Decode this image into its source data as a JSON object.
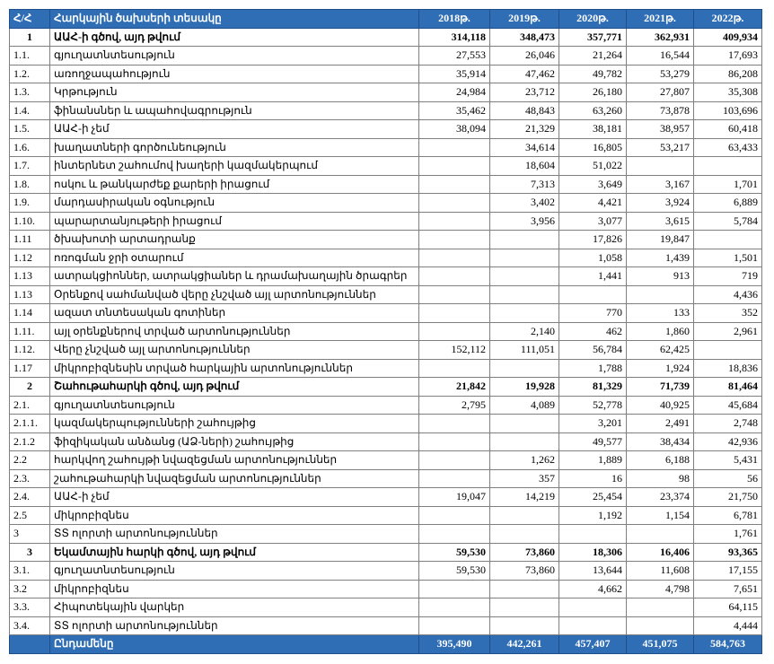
{
  "table": {
    "header": [
      "Հ/Հ",
      "Հարկային ծախսերի տեսակը",
      "2018թ.",
      "2019թ.",
      "2020թ.",
      "2021թ.",
      "2022թ."
    ],
    "rows": [
      {
        "bold": true,
        "cells": [
          "1",
          "ԱԱՀ-ի գծով, այդ թվում",
          "314,118",
          "348,473",
          "357,771",
          "362,931",
          "409,934"
        ]
      },
      {
        "cells": [
          "1.1.",
          "գյուղատնտեսություն",
          "27,553",
          "26,046",
          "21,264",
          "16,544",
          "17,693"
        ]
      },
      {
        "cells": [
          "1.2.",
          "առողջապահություն",
          "35,914",
          "47,462",
          "49,782",
          "53,279",
          "86,208"
        ]
      },
      {
        "cells": [
          "1.3.",
          "Կրթություն",
          "24,984",
          "23,712",
          "26,180",
          "27,807",
          "35,308"
        ]
      },
      {
        "cells": [
          "1.4.",
          "ֆինանսներ և ապահովագրություն",
          "35,462",
          "48,843",
          "63,260",
          "73,878",
          "103,696"
        ]
      },
      {
        "cells": [
          "1.5.",
          "ԱԱՀ-ի չեմ",
          "38,094",
          "21,329",
          "38,181",
          "38,957",
          "60,418"
        ]
      },
      {
        "cells": [
          "1.6.",
          "խաղատների գործունեություն",
          null,
          "34,614",
          "16,805",
          "53,217",
          "63,433"
        ]
      },
      {
        "cells": [
          "1.7.",
          "ինտերնետ շահումով խաղերի կազմակերպում",
          null,
          "18,604",
          "51,022",
          null,
          null
        ]
      },
      {
        "cells": [
          "1.8.",
          "ոսկու և թանկարժեք քարերի իրացում",
          null,
          "7,313",
          "3,649",
          "3,167",
          "1,701"
        ]
      },
      {
        "cells": [
          "1.9.",
          "մարդասիրական օգնություն",
          null,
          "3,402",
          "4,421",
          "3,924",
          "6,889"
        ]
      },
      {
        "cells": [
          "1.10.",
          "պարարտանյութերի իրացում",
          null,
          "3,956",
          "3,077",
          "3,615",
          "5,784"
        ]
      },
      {
        "cells": [
          "1.11",
          "ծխախոտի արտադրանք",
          null,
          null,
          "17,826",
          "19,847",
          null
        ]
      },
      {
        "cells": [
          "1.12",
          "ոռոգման ջրի օտարում",
          null,
          null,
          "1,058",
          "1,439",
          "1,501"
        ]
      },
      {
        "cells": [
          "1.13",
          "ատրակցիոններ, ատրակցիաներ և դրամախաղային ծրագրեր",
          null,
          null,
          "1,441",
          "913",
          "719"
        ]
      },
      {
        "cells": [
          "1.13",
          "Օրենքով սահմանված վերը չնշված այլ արտոնություններ",
          null,
          null,
          null,
          null,
          "4,436"
        ]
      },
      {
        "cells": [
          "1.14",
          "ազատ տնտեսական գոտիներ",
          null,
          null,
          "770",
          "133",
          "352"
        ]
      },
      {
        "cells": [
          "1.11.",
          "այլ օրենքներով տրված արտոնություններ",
          null,
          "2,140",
          "462",
          "1,860",
          "2,961"
        ]
      },
      {
        "cells": [
          "1.12.",
          "Վերը չնշված այլ արտոնություններ",
          "152,112",
          "111,051",
          "56,784",
          "62,425",
          null
        ]
      },
      {
        "cells": [
          "1.17",
          "միկրոբիզնեսին տրված հարկային արտոնություններ",
          null,
          null,
          "1,788",
          "1,924",
          "18,836"
        ]
      },
      {
        "bold": true,
        "cells": [
          "2",
          "Շահութահարկի գծով, այդ թվում",
          "21,842",
          "19,928",
          "81,329",
          "71,739",
          "81,464"
        ]
      },
      {
        "cells": [
          "2.1.",
          "գյուղատնտեսություն",
          "2,795",
          "4,089",
          "52,778",
          "40,925",
          "45,684"
        ]
      },
      {
        "cells": [
          "2.1.1.",
          "կազմակերպությունների շահույթից",
          null,
          null,
          "3,201",
          "2,491",
          "2,748"
        ]
      },
      {
        "cells": [
          "2.1.2",
          "ֆիզիկական անձանց (ԱՁ-ների) շահույթից",
          null,
          null,
          "49,577",
          "38,434",
          "42,936"
        ]
      },
      {
        "cells": [
          "2.2",
          "հարկվող շահույթի նվազեցման արտոնություններ",
          null,
          "1,262",
          "1,889",
          "6,188",
          "5,431"
        ]
      },
      {
        "cells": [
          "2.3.",
          "շահութահարկի նվազեցման արտոնություններ",
          null,
          "357",
          "16",
          "98",
          "56"
        ]
      },
      {
        "cells": [
          "2.4.",
          "ԱԱՀ-ի չեմ",
          "19,047",
          "14,219",
          "25,454",
          "23,374",
          "21,750"
        ]
      },
      {
        "cells": [
          "2.5",
          "միկրոբիզնես",
          null,
          null,
          "1,192",
          "1,154",
          "6,781"
        ]
      },
      {
        "cells": [
          "3",
          "ՏՏ ոլորտի արտոնություններ",
          null,
          null,
          null,
          null,
          "1,761"
        ]
      },
      {
        "bold": true,
        "cells": [
          "3",
          "Եկամտային հարկի գծով, այդ թվում",
          "59,530",
          "73,860",
          "18,306",
          "16,406",
          "93,365"
        ]
      },
      {
        "cells": [
          "3.1.",
          "գյուղատնտեսություն",
          "59,530",
          "73,860",
          "13,644",
          "11,608",
          "17,155"
        ]
      },
      {
        "cells": [
          "3.2",
          "միկրոբիզնես",
          null,
          null,
          "4,662",
          "4,798",
          "7,651"
        ]
      },
      {
        "cells": [
          "3.3.",
          "Հիպոտեկային վարկեր",
          null,
          null,
          null,
          null,
          "64,115"
        ]
      },
      {
        "cells": [
          "3.4.",
          "ՏՏ ոլորտի արտոնություններ",
          null,
          null,
          null,
          null,
          "4,444"
        ]
      }
    ],
    "footer": [
      null,
      "Ընդամենը",
      "395,490",
      "442,261",
      "457,407",
      "451,075",
      "584,763"
    ]
  }
}
